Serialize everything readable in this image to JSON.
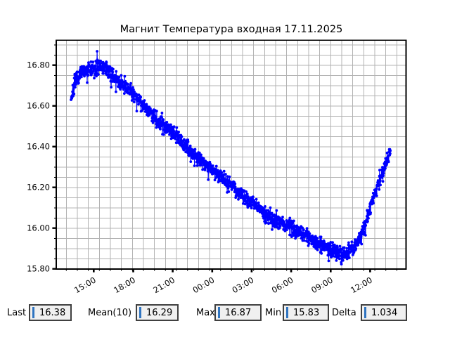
{
  "window": {
    "background": "#ffffff"
  },
  "chart_data": {
    "type": "line",
    "title": "Магнит Температура входная 17.11.2025",
    "xlabel": "",
    "ylabel": "",
    "grid": true,
    "legend": false,
    "line_color": "#0000ff",
    "grid_color": "#b3b3b3",
    "axis_color": "#000000",
    "x_tick_labels": [
      "15:00",
      "18:00",
      "21:00",
      "00:00",
      "03:00",
      "06:00",
      "09:00",
      "12:00"
    ],
    "x_tick_hours": [
      15,
      18,
      21,
      24,
      27,
      30,
      33,
      36
    ],
    "y_tick_labels": [
      "15.80",
      "16.00",
      "16.20",
      "16.40",
      "16.60",
      "16.80"
    ],
    "y_tick_values": [
      15.8,
      16.0,
      16.2,
      16.4,
      16.6,
      16.8
    ],
    "xlim_hours": [
      12.15,
      38.73
    ],
    "ylim": [
      15.799,
      16.922
    ],
    "sample_step_hours": 0.0166667,
    "noise_amplitude": 0.055,
    "midline_anchors": [
      [
        13.27,
        16.63
      ],
      [
        13.5,
        16.705
      ],
      [
        13.75,
        16.735
      ],
      [
        14.0,
        16.755
      ],
      [
        14.5,
        16.775
      ],
      [
        15.0,
        16.785
      ],
      [
        15.6,
        16.79
      ],
      [
        16.0,
        16.775
      ],
      [
        16.5,
        16.745
      ],
      [
        17.0,
        16.71
      ],
      [
        17.5,
        16.69
      ],
      [
        18.0,
        16.665
      ],
      [
        18.5,
        16.625
      ],
      [
        19.0,
        16.59
      ],
      [
        19.5,
        16.555
      ],
      [
        20.0,
        16.525
      ],
      [
        20.5,
        16.5
      ],
      [
        21.0,
        16.475
      ],
      [
        21.5,
        16.435
      ],
      [
        22.0,
        16.4
      ],
      [
        22.5,
        16.37
      ],
      [
        23.0,
        16.345
      ],
      [
        23.5,
        16.315
      ],
      [
        24.0,
        16.285
      ],
      [
        24.5,
        16.26
      ],
      [
        25.0,
        16.235
      ],
      [
        25.5,
        16.21
      ],
      [
        26.0,
        16.18
      ],
      [
        26.5,
        16.155
      ],
      [
        27.0,
        16.125
      ],
      [
        27.5,
        16.1
      ],
      [
        28.0,
        16.075
      ],
      [
        28.5,
        16.05
      ],
      [
        29.0,
        16.035
      ],
      [
        29.5,
        16.02
      ],
      [
        30.0,
        16.005
      ],
      [
        30.5,
        15.985
      ],
      [
        31.0,
        15.965
      ],
      [
        31.5,
        15.95
      ],
      [
        32.0,
        15.93
      ],
      [
        32.5,
        15.915
      ],
      [
        33.0,
        15.9
      ],
      [
        33.5,
        15.885
      ],
      [
        34.0,
        15.87
      ],
      [
        34.5,
        15.885
      ],
      [
        35.0,
        15.925
      ],
      [
        35.3,
        15.965
      ],
      [
        35.7,
        16.03
      ],
      [
        36.0,
        16.1
      ],
      [
        36.3,
        16.165
      ],
      [
        36.7,
        16.235
      ],
      [
        37.0,
        16.29
      ],
      [
        37.3,
        16.34
      ],
      [
        37.55,
        16.375
      ]
    ],
    "forced_points": [
      [
        13.27,
        16.63
      ],
      [
        15.25,
        16.868
      ],
      [
        33.8,
        15.832
      ]
    ],
    "last_value": 16.38,
    "stats_shown": {
      "last": 16.38,
      "mean10": 16.29,
      "max": 16.87,
      "min": 15.83,
      "delta": 1.034
    }
  },
  "statusbar": {
    "field_bg": "#f0f0f0",
    "cursor_color": "#2f74c0",
    "fields": [
      {
        "id": "last",
        "label": "Last",
        "value": "16.38"
      },
      {
        "id": "mean",
        "label": "Mean(10)",
        "value": "16.29"
      },
      {
        "id": "max",
        "label": "Max",
        "value": "16.87"
      },
      {
        "id": "min",
        "label": "Min",
        "value": "15.83"
      },
      {
        "id": "delta",
        "label": "Delta",
        "value": "1.034"
      }
    ]
  }
}
